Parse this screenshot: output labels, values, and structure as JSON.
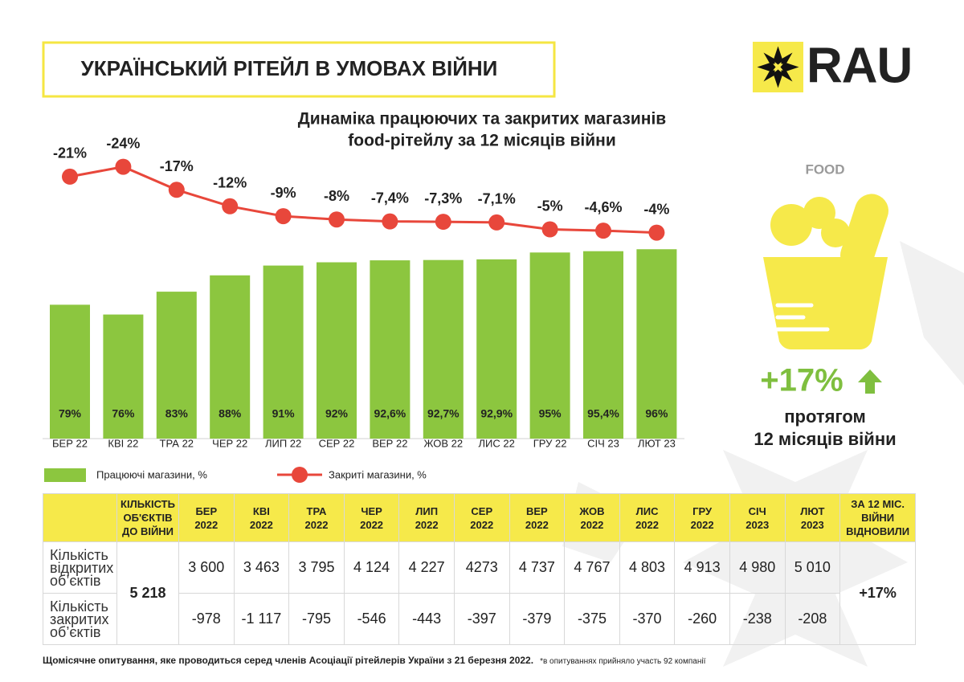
{
  "header": {
    "title": "УКРАЇНСЬКИЙ РІТЕЙЛ В УМОВАХ ВІЙНИ",
    "logo": "RAU"
  },
  "chart_data": {
    "type": "bar",
    "title": [
      "Динаміка працюючих та закритих магазинів",
      "food-рітейлу за 12 місяців війни"
    ],
    "categories": [
      "БЕР 22",
      "КВІ 22",
      "ТРА 22",
      "ЧЕР 22",
      "ЛИП 22",
      "СЕР 22",
      "ВЕР 22",
      "ЖОВ 22",
      "ЛИС 22",
      "ГРУ 22",
      "СІЧ 23",
      "ЛЮТ 23"
    ],
    "ylim": [
      38,
      100
    ],
    "y2lim": [
      0,
      -30
    ],
    "series": [
      {
        "name": "Працюючі магазини, %",
        "type": "bar",
        "color": "#8cc63f",
        "values": [
          79,
          76,
          83,
          88,
          91,
          92,
          92.6,
          92.7,
          92.9,
          95,
          95.4,
          96
        ],
        "value_labels": [
          "79%",
          "76%",
          "83%",
          "88%",
          "91%",
          "92%",
          "92,6%",
          "92,7%",
          "92,9%",
          "95%",
          "95,4%",
          "96%"
        ]
      },
      {
        "name": "Закриті магазини, %",
        "type": "line",
        "axis": "y2",
        "color": "#e8473b",
        "values": [
          -21,
          -24,
          -17,
          -12,
          -9,
          -8,
          -7.4,
          -7.3,
          -7.1,
          -5,
          -4.6,
          -4
        ],
        "value_labels": [
          "-21%",
          "-24%",
          "-17%",
          "-12%",
          "-9%",
          "-8%",
          "-7,4%",
          "-7,3%",
          "-7,1%",
          "-5%",
          "-4,6%",
          "-4%"
        ]
      }
    ]
  },
  "side": {
    "label": "FOOD",
    "value": "+17%",
    "caption": [
      "протягом",
      "12 місяців війни"
    ]
  },
  "table": {
    "before_war_header": "КІЛЬКІСТЬ ОБ'ЄКТІВ ДО ВІЙНИ",
    "months": [
      {
        "month": "БЕР",
        "year": "2022"
      },
      {
        "month": "КВІ",
        "year": "2022"
      },
      {
        "month": "ТРА",
        "year": "2022"
      },
      {
        "month": "ЧЕР",
        "year": "2022"
      },
      {
        "month": "ЛИП",
        "year": "2022"
      },
      {
        "month": "СЕР",
        "year": "2022"
      },
      {
        "month": "ВЕР",
        "year": "2022"
      },
      {
        "month": "ЖОВ",
        "year": "2022"
      },
      {
        "month": "ЛИС",
        "year": "2022"
      },
      {
        "month": "ГРУ",
        "year": "2022"
      },
      {
        "month": "СІЧ",
        "year": "2023"
      },
      {
        "month": "ЛЮТ",
        "year": "2023"
      }
    ],
    "recovered_header": "ЗА 12 МІС. ВІЙНИ ВІДНОВИЛИ",
    "before_war": "5 218",
    "recovered": "+17%",
    "rows": [
      {
        "label": "Кількість відкритих об’єктів",
        "values": [
          "3 600",
          "3 463",
          "3 795",
          "4 124",
          "4 227",
          "4273",
          "4 737",
          "4 767",
          "4 803",
          "4 913",
          "4 980",
          "5 010"
        ]
      },
      {
        "label": "Кількість закритих об’єктів",
        "values": [
          "-978",
          "-1 117",
          "-795",
          "-546",
          "-443",
          "-397",
          "-379",
          "-375",
          "-370",
          "-260",
          "-238",
          "-208"
        ]
      }
    ]
  },
  "footnote": {
    "main": "Щомісячне опитування, яке проводиться серед членів Асоціації рітейлерів України з 21 березня 2022.",
    "note": "*в опитуваннях прийняло участь 92 компанії"
  }
}
